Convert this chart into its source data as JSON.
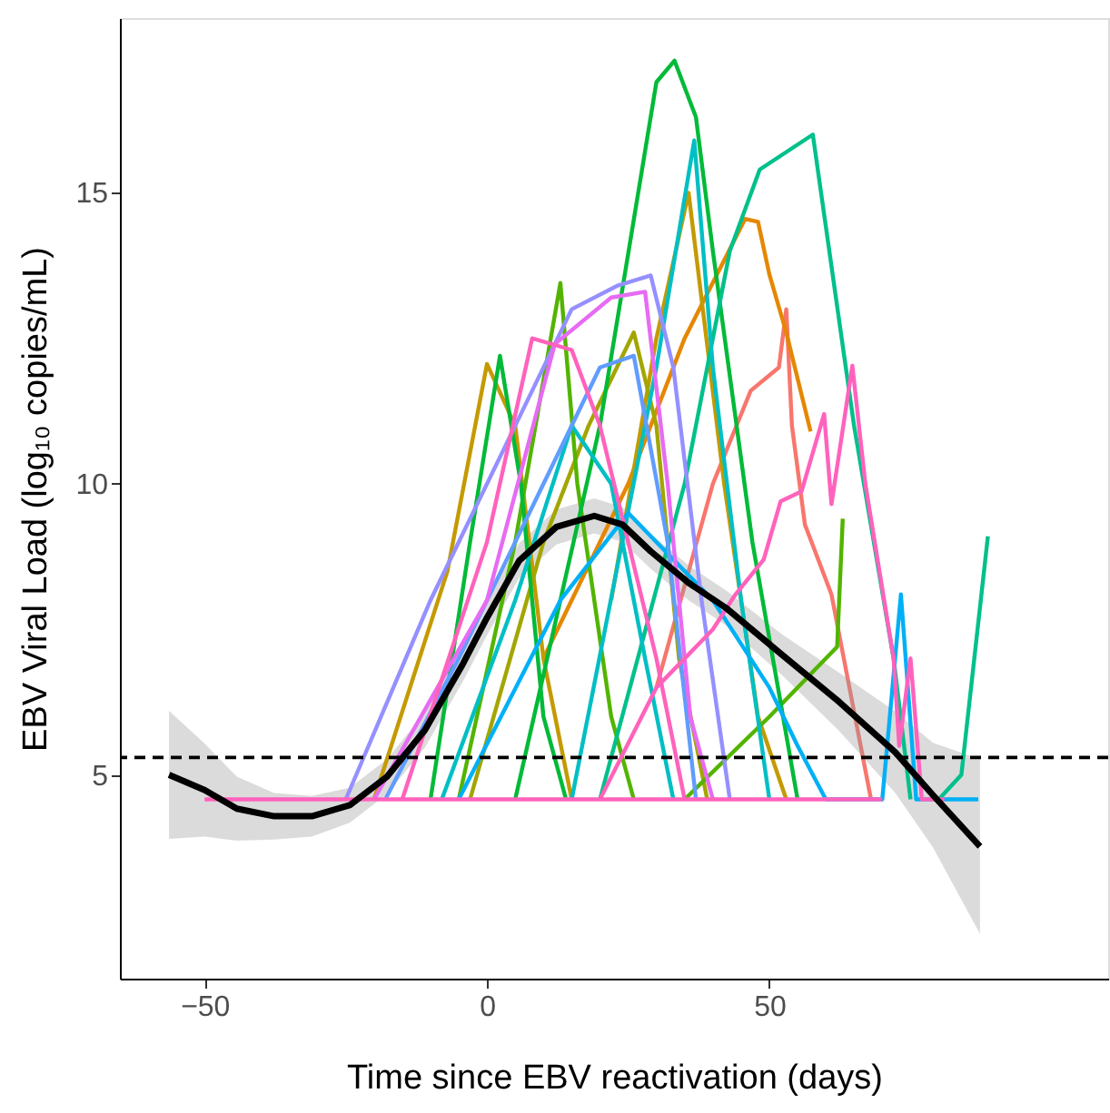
{
  "chart_data": {
    "type": "line",
    "xlabel": "Time since EBV reactivation (days)",
    "ylabel": "EBV Viral Load (log₁₀ copies/mL)",
    "xlim": [
      -65,
      110
    ],
    "ylim": [
      1.5,
      18
    ],
    "xticks": [
      -50,
      0,
      50
    ],
    "yticks": [
      5,
      10,
      15
    ],
    "grid": false,
    "marker": "none",
    "line_style": "solid",
    "ref_lines": [
      {
        "axis": "y",
        "value": 5.3,
        "line_style": "dashed",
        "color": "#000000"
      }
    ],
    "series": [
      {
        "color": "#f8766d",
        "x": [
          30,
          40,
          46.7,
          51.7,
          53,
          54,
          56.3,
          61,
          68
        ],
        "values": [
          6.5,
          10,
          11.6,
          12.0,
          13.0,
          11,
          9.3,
          8.1,
          4.58
        ]
      },
      {
        "color": "#e58700",
        "x": [
          10,
          25,
          35,
          45.7,
          48,
          50,
          53,
          57.3
        ],
        "values": [
          7,
          10,
          12.5,
          14.55,
          14.5,
          13.6,
          12.6,
          10.9
        ]
      },
      {
        "color": "#c49a00",
        "x": [
          22,
          30,
          35.7,
          42,
          48,
          53
        ],
        "values": [
          8,
          12.5,
          15.0,
          10,
          6,
          4.58
        ]
      },
      {
        "color": "#c49a00",
        "x": [
          -20,
          -7,
          0,
          5,
          10,
          15
        ],
        "values": [
          4.58,
          8.5,
          12.06,
          11,
          7,
          4.58
        ]
      },
      {
        "color": "#a3a500",
        "x": [
          -3,
          10,
          18,
          26,
          30,
          34,
          39
        ],
        "values": [
          4.58,
          9,
          11,
          12.6,
          11,
          7,
          4.58
        ]
      },
      {
        "color": "#53b400",
        "x": [
          -5,
          5,
          13,
          16,
          22,
          26
        ],
        "values": [
          4.58,
          9,
          13.45,
          10,
          6,
          4.58
        ]
      },
      {
        "color": "#53b400",
        "x": [
          35,
          50,
          62,
          63
        ],
        "values": [
          4.58,
          6,
          7.2,
          9.4
        ]
      },
      {
        "color": "#00ba38",
        "x": [
          5,
          20,
          30,
          33.2,
          37,
          40,
          47,
          55
        ],
        "values": [
          4.58,
          11,
          16.9,
          17.27,
          16.3,
          14,
          9,
          4.58
        ]
      },
      {
        "color": "#00ba38",
        "x": [
          -10,
          -3,
          2.3,
          6,
          10,
          14
        ],
        "values": [
          4.58,
          9,
          12.2,
          10,
          6,
          4.58
        ]
      },
      {
        "color": "#00c08b",
        "x": [
          20,
          35,
          43,
          48.3,
          57.7,
          65,
          72,
          75
        ],
        "values": [
          4.58,
          10,
          14,
          15.4,
          16.0,
          11,
          7,
          4.58
        ]
      },
      {
        "color": "#00c08b",
        "x": [
          80,
          84,
          88.7
        ],
        "values": [
          4.58,
          5.0,
          9.1
        ]
      },
      {
        "color": "#00bfc4",
        "x": [
          15,
          30,
          36.7,
          40,
          45,
          50
        ],
        "values": [
          4.58,
          12,
          15.9,
          12,
          8,
          4.58
        ]
      },
      {
        "color": "#00bfc4",
        "x": [
          -8,
          5,
          15,
          22,
          28,
          33
        ],
        "values": [
          4.58,
          8,
          11,
          10,
          7,
          4.58
        ]
      },
      {
        "color": "#00b0f6",
        "x": [
          -5,
          13,
          25,
          40,
          50,
          55,
          60
        ],
        "values": [
          4.58,
          8,
          9.5,
          8,
          6.5,
          5.5,
          4.58
        ]
      },
      {
        "color": "#00b0f6",
        "x": [
          60,
          70,
          73.3,
          76,
          80,
          87
        ],
        "values": [
          4.58,
          4.58,
          8.1,
          4.58,
          4.58,
          4.58
        ]
      },
      {
        "color": "#619cff",
        "x": [
          -18,
          -5,
          10,
          20,
          26,
          32,
          37
        ],
        "values": [
          4.58,
          7,
          10,
          12,
          12.2,
          9,
          4.58
        ]
      },
      {
        "color": "#9590ff",
        "x": [
          -25,
          -10,
          5,
          15,
          23,
          29,
          33,
          38,
          43
        ],
        "values": [
          4.58,
          8,
          11,
          13,
          13.4,
          13.58,
          12,
          8,
          4.58
        ]
      },
      {
        "color": "#e76bf3",
        "x": [
          -20,
          0,
          12,
          22,
          28,
          32,
          36,
          40
        ],
        "values": [
          4.58,
          8,
          12.4,
          13.2,
          13.3,
          10,
          6,
          4.58
        ]
      },
      {
        "color": "#ff62bc",
        "x": [
          -15,
          0,
          8,
          15,
          20,
          25,
          30,
          35
        ],
        "values": [
          4.58,
          9,
          12.5,
          12.3,
          11,
          9,
          7,
          4.58
        ]
      },
      {
        "color": "#ff62bc",
        "x": [
          20,
          30,
          40,
          44,
          49,
          52,
          55.7,
          59.7,
          61,
          64.7,
          67,
          72,
          73,
          75,
          77,
          81
        ],
        "values": [
          4.58,
          6.5,
          7.5,
          8.1,
          8.7,
          9.7,
          9.87,
          11.2,
          9.65,
          12.03,
          10,
          7,
          5.5,
          7.0,
          4.58,
          4.58
        ]
      },
      {
        "color": "#ff62bc",
        "x": [
          -50,
          70
        ],
        "values": [
          4.58,
          4.58
        ]
      },
      {
        "color": "#000000",
        "x": [
          -56.3,
          -50,
          -44.3,
          -37.7,
          -31,
          -24.3,
          -17.7,
          -11,
          -4.3,
          0,
          5.7,
          12.3,
          19,
          24,
          29,
          35.7,
          42.3,
          52.3,
          62.3,
          72.3,
          79,
          87.3
        ],
        "values": [
          5.0,
          4.74,
          4.42,
          4.29,
          4.29,
          4.48,
          4.97,
          5.77,
          6.9,
          7.7,
          8.68,
          9.26,
          9.45,
          9.3,
          8.84,
          8.3,
          7.87,
          7.06,
          6.26,
          5.39,
          4.65,
          3.77
        ],
        "lower": [
          3.9,
          3.94,
          3.87,
          3.89,
          3.94,
          4.18,
          4.67,
          5.47,
          6.6,
          7.4,
          8.38,
          8.96,
          9.15,
          9.0,
          8.54,
          8.0,
          7.57,
          6.71,
          5.76,
          4.69,
          3.75,
          2.27
        ],
        "upper": [
          6.1,
          5.54,
          4.97,
          4.69,
          4.64,
          4.78,
          5.27,
          6.07,
          7.2,
          8.0,
          8.98,
          9.56,
          9.75,
          9.6,
          9.14,
          8.6,
          8.17,
          7.41,
          6.76,
          6.09,
          5.55,
          5.27
        ]
      }
    ]
  }
}
